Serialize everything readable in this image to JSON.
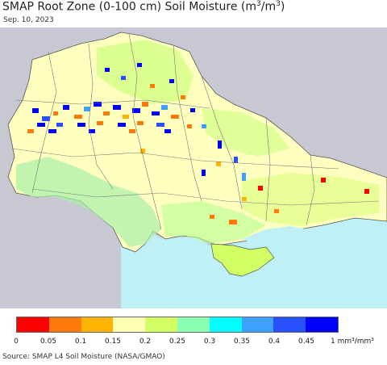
{
  "header": {
    "title_prefix": "SMAP Root Zone (0-100 cm) Soil Moisture (m",
    "title_mid": "/m",
    "title_suffix": ")",
    "title_exp": "3",
    "date": "Sep. 10, 2023"
  },
  "map": {
    "sea_color": "#bff0f5",
    "outside_color": "#c8c8d2",
    "land_base_color": "#ffffc0",
    "region_name": "Ukraine"
  },
  "legend": {
    "colors": [
      "#ff0000",
      "#ff7a0a",
      "#ffb400",
      "#ffffb4",
      "#d2ff64",
      "#8cffb4",
      "#00ffff",
      "#3ca0ff",
      "#2850ff",
      "#0000ff"
    ],
    "ticks": [
      "0",
      "0.05",
      "0.1",
      "0.15",
      "0.2",
      "0.25",
      "0.3",
      "0.35",
      "0.4",
      "0.45"
    ],
    "unit": "1 mm³/mm³"
  },
  "footer": {
    "source": "Source: SMAP L4 Soil Moisture (NASA/GMAO)"
  }
}
